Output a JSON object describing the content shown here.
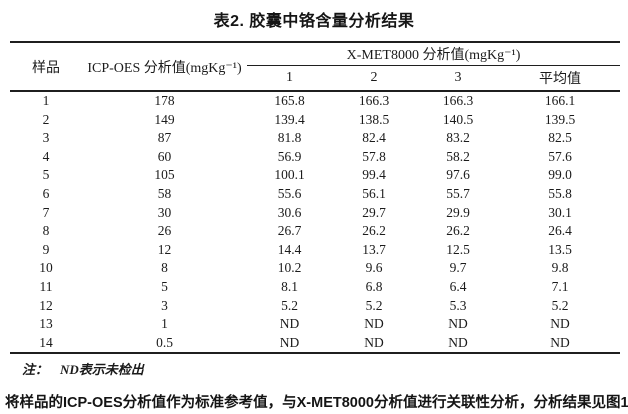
{
  "title": "表2. 胶囊中铬含量分析结果",
  "table": {
    "header": {
      "sample": "样品",
      "icp": "ICP-OES 分析值(mgKg⁻¹)",
      "xmet_group": "X-MET8000 分析值(mgKg⁻¹)",
      "sub_columns": [
        "1",
        "2",
        "3",
        "平均值"
      ]
    },
    "rows": [
      {
        "sample": "1",
        "icp": "178",
        "v1": "165.8",
        "v2": "166.3",
        "v3": "166.3",
        "avg": "166.1"
      },
      {
        "sample": "2",
        "icp": "149",
        "v1": "139.4",
        "v2": "138.5",
        "v3": "140.5",
        "avg": "139.5"
      },
      {
        "sample": "3",
        "icp": "87",
        "v1": "81.8",
        "v2": "82.4",
        "v3": "83.2",
        "avg": "82.5"
      },
      {
        "sample": "4",
        "icp": "60",
        "v1": "56.9",
        "v2": "57.8",
        "v3": "58.2",
        "avg": "57.6"
      },
      {
        "sample": "5",
        "icp": "105",
        "v1": "100.1",
        "v2": "99.4",
        "v3": "97.6",
        "avg": "99.0"
      },
      {
        "sample": "6",
        "icp": "58",
        "v1": "55.6",
        "v2": "56.1",
        "v3": "55.7",
        "avg": "55.8"
      },
      {
        "sample": "7",
        "icp": "30",
        "v1": "30.6",
        "v2": "29.7",
        "v3": "29.9",
        "avg": "30.1"
      },
      {
        "sample": "8",
        "icp": "26",
        "v1": "26.7",
        "v2": "26.2",
        "v3": "26.2",
        "avg": "26.4"
      },
      {
        "sample": "9",
        "icp": "12",
        "v1": "14.4",
        "v2": "13.7",
        "v3": "12.5",
        "avg": "13.5"
      },
      {
        "sample": "10",
        "icp": "8",
        "v1": "10.2",
        "v2": "9.6",
        "v3": "9.7",
        "avg": "9.8"
      },
      {
        "sample": "11",
        "icp": "5",
        "v1": "8.1",
        "v2": "6.8",
        "v3": "6.4",
        "avg": "7.1"
      },
      {
        "sample": "12",
        "icp": "3",
        "v1": "5.2",
        "v2": "5.2",
        "v3": "5.3",
        "avg": "5.2"
      },
      {
        "sample": "13",
        "icp": "1",
        "v1": "ND",
        "v2": "ND",
        "v3": "ND",
        "avg": "ND"
      },
      {
        "sample": "14",
        "icp": "0.5",
        "v1": "ND",
        "v2": "ND",
        "v3": "ND",
        "avg": "ND"
      }
    ],
    "note_label": "注：",
    "note_text": "ND表示未检出"
  },
  "footer_paragraph": "将样品的ICP-OES分析值作为标准参考值，与X-MET8000分析值进行关联性分析，分析结果见图1."
}
